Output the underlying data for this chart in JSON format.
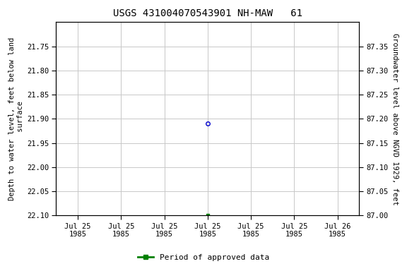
{
  "title": "USGS 431004070543901 NH-MAW   61",
  "title_fontsize": 10,
  "ylabel_left": "Depth to water level, feet below land\n surface",
  "ylabel_right": "Groundwater level above NGVD 1929, feet",
  "ylim_left": [
    22.1,
    21.7
  ],
  "ylim_right": [
    87.0,
    87.4
  ],
  "yticks_left": [
    21.75,
    21.8,
    21.85,
    21.9,
    21.95,
    22.0,
    22.05,
    22.1
  ],
  "yticks_right": [
    87.35,
    87.3,
    87.25,
    87.2,
    87.15,
    87.1,
    87.05,
    87.0
  ],
  "data_point_blue_x": 3,
  "data_point_blue_y": 21.91,
  "data_point_green_x": 3,
  "data_point_green_y": 22.1,
  "blue_marker": "o",
  "blue_color": "#0000cc",
  "blue_markersize": 4,
  "green_color": "#008000",
  "green_marker": "s",
  "green_markersize": 3,
  "legend_label": "Period of approved data",
  "legend_color": "#008000",
  "xmin": -0.5,
  "xmax": 6.5,
  "xtick_positions": [
    0,
    1,
    2,
    3,
    4,
    5,
    6
  ],
  "xtick_labels": [
    "Jul 25\n1985",
    "Jul 25\n1985",
    "Jul 25\n1985",
    "Jul 25\n1985",
    "Jul 25\n1985",
    "Jul 25\n1985",
    "Jul 26\n1985"
  ],
  "grid_color": "#c8c8c8",
  "background_color": "#ffffff"
}
